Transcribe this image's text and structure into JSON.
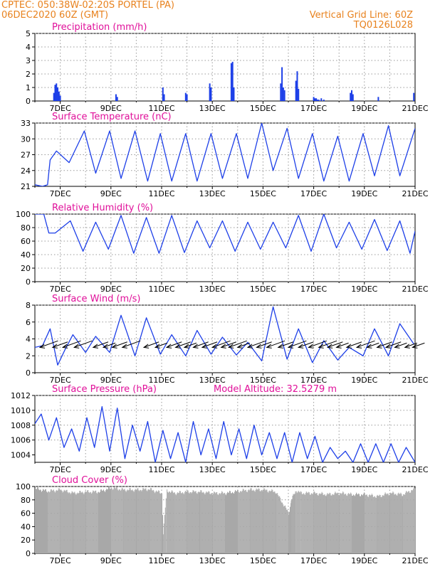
{
  "header": {
    "line1_left": "CPTEC:   050:38W-02:20S   PORTEL (PA)",
    "line2_left": "06DEC2020 60Z (GMT)",
    "line1_right": "Vertical Grid Line: 60Z",
    "line2_right": "TQ0126L028"
  },
  "colors": {
    "header": "#e8821e",
    "title": "#e0109a",
    "series": "#1d3fe8",
    "cloud": "#a8a8a8",
    "grid": "#9a9a9a"
  },
  "chart_data": [
    {
      "id": "precip",
      "type": "bar",
      "title": "Precipitation (mm/h)",
      "x_ticks": [
        "7DEC",
        "9DEC",
        "11DEC",
        "13DEC",
        "15DEC",
        "17DEC",
        "19DEC",
        "21DEC"
      ],
      "ylim": [
        0,
        5
      ],
      "y_ticks": [
        0,
        1,
        2,
        3,
        4,
        5
      ],
      "x": [
        0.75,
        0.8,
        0.85,
        0.9,
        0.95,
        1.0,
        3.2,
        3.25,
        5.05,
        5.1,
        5.95,
        6.0,
        6.9,
        6.95,
        7.75,
        7.8,
        7.85,
        9.7,
        9.75,
        9.8,
        9.85,
        10.3,
        10.35,
        10.4,
        11.0,
        11.05,
        11.1,
        11.15,
        11.2,
        11.3,
        11.4,
        12.45,
        12.5,
        12.55,
        13.55,
        14.95
      ],
      "values": [
        0.6,
        1.2,
        1.3,
        1.0,
        0.7,
        0.4,
        0.5,
        0.3,
        1.0,
        0.5,
        0.6,
        0.5,
        1.3,
        1.0,
        2.8,
        2.9,
        1.0,
        1.3,
        2.5,
        1.0,
        0.8,
        1.5,
        2.2,
        0.9,
        0.3,
        0.2,
        0.2,
        0.1,
        0.1,
        0.2,
        0.1,
        0.6,
        0.8,
        0.5,
        0.3,
        0.6
      ]
    },
    {
      "id": "temp",
      "type": "line",
      "title": "Surface Temperature (nC)",
      "x_ticks": [
        "7DEC",
        "9DEC",
        "11DEC",
        "13DEC",
        "15DEC",
        "17DEC",
        "19DEC",
        "21DEC"
      ],
      "ylim": [
        21,
        33
      ],
      "y_ticks": [
        21,
        24,
        27,
        30,
        33
      ],
      "x": [
        0,
        0.3,
        0.5,
        0.6,
        0.85,
        1.35,
        1.95,
        2.4,
        2.95,
        3.4,
        3.95,
        4.45,
        4.95,
        5.4,
        5.95,
        6.4,
        6.95,
        7.4,
        7.95,
        8.4,
        8.95,
        9.4,
        9.95,
        10.4,
        10.95,
        11.4,
        11.95,
        12.4,
        12.95,
        13.4,
        13.95,
        14.4,
        15.0
      ],
      "y": [
        21.3,
        21.0,
        21.3,
        26.0,
        27.7,
        25.5,
        31.5,
        23.5,
        31.5,
        22.5,
        31.5,
        22.0,
        31.0,
        22.0,
        31.0,
        22.0,
        31.0,
        22.5,
        31.0,
        22.5,
        33.0,
        24.0,
        32.0,
        22.5,
        31.0,
        22.0,
        30.5,
        22.0,
        31.0,
        23.0,
        32.5,
        23.0,
        32.0
      ]
    },
    {
      "id": "rh",
      "type": "line",
      "title": "Relative Humidity (%)",
      "x_ticks": [
        "7DEC",
        "9DEC",
        "11DEC",
        "13DEC",
        "15DEC",
        "17DEC",
        "19DEC",
        "21DEC"
      ],
      "ylim": [
        0,
        100
      ],
      "y_ticks": [
        0,
        20,
        40,
        60,
        80,
        100
      ],
      "x": [
        0,
        0.35,
        0.55,
        0.8,
        1.4,
        1.9,
        2.4,
        2.9,
        3.4,
        3.9,
        4.4,
        4.9,
        5.4,
        5.9,
        6.4,
        6.9,
        7.4,
        7.9,
        8.4,
        8.9,
        9.4,
        9.9,
        10.4,
        10.9,
        11.4,
        11.9,
        12.4,
        12.9,
        13.4,
        13.9,
        14.4,
        14.8,
        15.0
      ],
      "y": [
        100,
        100,
        72,
        72,
        90,
        45,
        88,
        48,
        98,
        42,
        95,
        42,
        98,
        43,
        90,
        50,
        90,
        45,
        88,
        48,
        88,
        50,
        98,
        45,
        100,
        50,
        88,
        48,
        92,
        46,
        90,
        42,
        75
      ]
    },
    {
      "id": "wind",
      "type": "line",
      "title": "Surface Wind (m/s)",
      "x_ticks": [
        "7DEC",
        "9DEC",
        "11DEC",
        "13DEC",
        "15DEC",
        "17DEC",
        "19DEC",
        "21DEC"
      ],
      "ylim": [
        0,
        8
      ],
      "y_ticks": [
        0,
        2,
        4,
        6,
        8
      ],
      "x": [
        0,
        0.3,
        0.6,
        0.9,
        1.2,
        1.5,
        2.0,
        2.4,
        2.95,
        3.4,
        3.95,
        4.4,
        4.95,
        5.4,
        5.95,
        6.4,
        6.95,
        7.4,
        7.95,
        8.4,
        8.95,
        9.4,
        9.95,
        10.4,
        10.95,
        11.4,
        11.95,
        12.4,
        12.95,
        13.4,
        13.95,
        14.4,
        14.95
      ],
      "y": [
        3.0,
        3.2,
        5.2,
        0.9,
        2.8,
        4.5,
        2.4,
        4.3,
        2.4,
        6.8,
        2.0,
        6.5,
        2.2,
        4.5,
        2.0,
        5.0,
        2.2,
        4.2,
        2.1,
        3.6,
        1.4,
        7.8,
        1.6,
        5.2,
        1.2,
        3.8,
        1.5,
        3.0,
        2.0,
        5.2,
        2.0,
        5.8,
        3.4
      ],
      "barb_x": [
        0.2,
        0.7,
        1.1,
        1.55,
        2.3,
        2.7,
        3.05,
        3.45,
        4.3,
        4.75,
        5.2,
        5.55,
        5.9,
        6.25,
        6.6,
        7.0,
        7.35,
        7.65,
        8.0,
        8.4,
        8.75,
        9.15,
        9.6,
        10.0,
        10.4,
        10.8,
        11.2,
        11.55,
        11.9,
        12.3,
        12.7,
        13.1,
        13.5,
        13.85,
        14.2,
        14.6,
        14.9
      ],
      "barb_spd": [
        3.0,
        2.5,
        3.0,
        3.0,
        2.5,
        2.0,
        2.5,
        3.0,
        2.5,
        2.0,
        2.5,
        2.5,
        2.0,
        2.5,
        2.5,
        3.0,
        2.5,
        3.0,
        2.0,
        3.0,
        2.5,
        3.0,
        2.5,
        3.0,
        2.5,
        3.0,
        3.0,
        2.5,
        2.0,
        2.5,
        3.0,
        2.0,
        2.5,
        2.5,
        2.0,
        2.0,
        2.0
      ]
    },
    {
      "id": "press",
      "type": "line",
      "title": "Surface Pressure (hPa)",
      "subtitle": "Model Altitude: 32.5279 m",
      "x_ticks": [
        "7DEC",
        "9DEC",
        "11DEC",
        "13DEC",
        "15DEC",
        "17DEC",
        "19DEC",
        "21DEC"
      ],
      "ylim": [
        1003,
        1012
      ],
      "y_ticks": [
        1004,
        1006,
        1008,
        1010,
        1012
      ],
      "x": [
        0,
        0.25,
        0.55,
        0.85,
        1.15,
        1.45,
        1.75,
        2.05,
        2.35,
        2.65,
        2.95,
        3.25,
        3.55,
        3.85,
        4.15,
        4.45,
        4.75,
        5.05,
        5.35,
        5.65,
        5.95,
        6.25,
        6.55,
        6.85,
        7.15,
        7.45,
        7.75,
        8.05,
        8.35,
        8.65,
        8.95,
        9.25,
        9.55,
        9.85,
        10.15,
        10.45,
        10.75,
        11.05,
        11.35,
        11.65,
        11.95,
        12.25,
        12.55,
        12.85,
        13.15,
        13.45,
        13.75,
        14.05,
        14.35,
        14.65,
        15.0
      ],
      "y": [
        1008.2,
        1009.5,
        1006.0,
        1009.0,
        1005.0,
        1007.5,
        1004.5,
        1009.0,
        1005.0,
        1010.5,
        1004.5,
        1010.3,
        1003.5,
        1008.0,
        1004.5,
        1008.5,
        1003.0,
        1007.3,
        1003.5,
        1007.0,
        1003.0,
        1008.5,
        1004.0,
        1007.5,
        1003.5,
        1008.5,
        1004.0,
        1007.5,
        1003.5,
        1008.0,
        1004.0,
        1007.0,
        1003.5,
        1007.0,
        1003.0,
        1007.0,
        1003.5,
        1006.5,
        1003.0,
        1005.0,
        1003.5,
        1004.5,
        1003.0,
        1005.5,
        1003.0,
        1005.5,
        1003.0,
        1005.5,
        1003.0,
        1005.0,
        1003.0
      ]
    },
    {
      "id": "cloud",
      "type": "area",
      "title": "Cloud Cover (%)",
      "x_ticks": [
        "7DEC",
        "9DEC",
        "11DEC",
        "13DEC",
        "15DEC",
        "17DEC",
        "19DEC",
        "21DEC"
      ],
      "ylim": [
        0,
        100
      ],
      "y_ticks": [
        0,
        20,
        40,
        60,
        80,
        100
      ],
      "x": [
        0,
        0.5,
        1.0,
        1.5,
        2.0,
        2.5,
        3.0,
        3.5,
        4.0,
        4.5,
        5.0,
        5.05,
        5.2,
        5.5,
        6.0,
        6.5,
        7.0,
        7.5,
        8.0,
        8.5,
        9.0,
        9.5,
        10.0,
        10.1,
        10.3,
        10.5,
        11.0,
        11.5,
        12.0,
        12.5,
        13.0,
        13.5,
        14.0,
        14.5,
        15.0
      ],
      "y": [
        97,
        93,
        95,
        90,
        92,
        92,
        98,
        95,
        95,
        96,
        90,
        30,
        94,
        90,
        92,
        92,
        90,
        90,
        93,
        95,
        95,
        92,
        60,
        80,
        94,
        90,
        90,
        88,
        90,
        88,
        88,
        85,
        90,
        88,
        97
      ]
    }
  ]
}
